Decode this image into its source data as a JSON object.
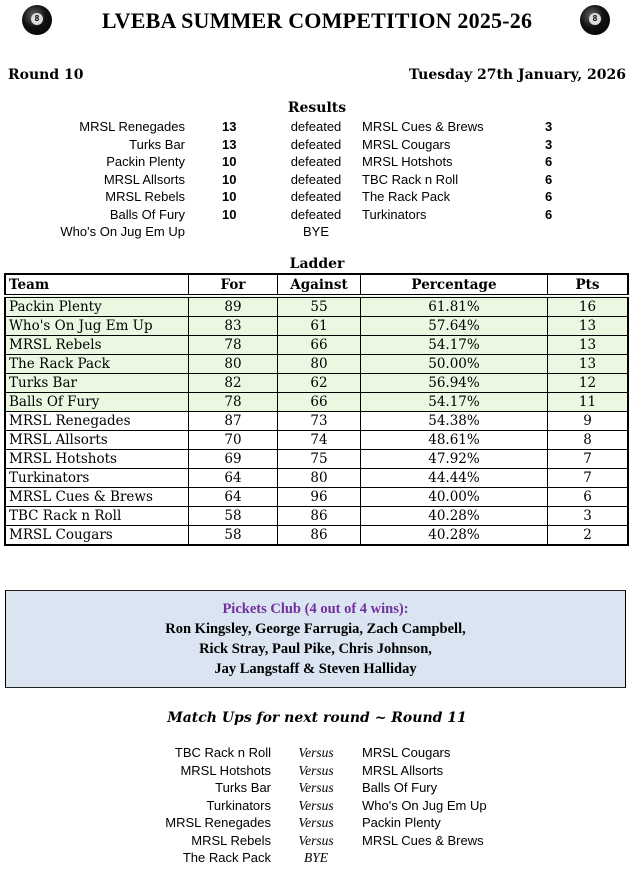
{
  "header": {
    "title": "LVEBA SUMMER COMPETITION 2025-26",
    "round": "Round 10",
    "date": "Tuesday 27th January, 2026",
    "ball_icon": "8"
  },
  "results": {
    "title": "Results",
    "rows": [
      {
        "winner": "MRSL Renegades",
        "ws": "13",
        "verb": "defeated",
        "loser": "MRSL Cues & Brews",
        "ls": "3"
      },
      {
        "winner": "Turks Bar",
        "ws": "13",
        "verb": "defeated",
        "loser": "MRSL Cougars",
        "ls": "3"
      },
      {
        "winner": "Packin Plenty",
        "ws": "10",
        "verb": "defeated",
        "loser": "MRSL Hotshots",
        "ls": "6"
      },
      {
        "winner": "MRSL Allsorts",
        "ws": "10",
        "verb": "defeated",
        "loser": "TBC Rack n Roll",
        "ls": "6"
      },
      {
        "winner": "MRSL Rebels",
        "ws": "10",
        "verb": "defeated",
        "loser": "The Rack Pack",
        "ls": "6"
      },
      {
        "winner": "Balls Of Fury",
        "ws": "10",
        "verb": "defeated",
        "loser": "Turkinators",
        "ls": "6"
      },
      {
        "winner": "Who's On Jug Em Up",
        "ws": "",
        "verb": "BYE",
        "loser": "",
        "ls": ""
      }
    ]
  },
  "ladder": {
    "title": "Ladder",
    "headers": [
      "Team",
      "For",
      "Against",
      "Percentage",
      "Pts"
    ],
    "highlight_color": "#ebf8e1",
    "rows": [
      [
        "Packin Plenty",
        "89",
        "55",
        "61.81%",
        "16"
      ],
      [
        "Who's On Jug Em Up",
        "83",
        "61",
        "57.64%",
        "13"
      ],
      [
        "MRSL Rebels",
        "78",
        "66",
        "54.17%",
        "13"
      ],
      [
        "The Rack Pack",
        "80",
        "80",
        "50.00%",
        "13"
      ],
      [
        "Turks Bar",
        "82",
        "62",
        "56.94%",
        "12"
      ],
      [
        "Balls Of Fury",
        "78",
        "66",
        "54.17%",
        "11"
      ],
      [
        "MRSL Renegades",
        "87",
        "73",
        "54.38%",
        "9"
      ],
      [
        "MRSL Allsorts",
        "70",
        "74",
        "48.61%",
        "8"
      ],
      [
        "MRSL Hotshots",
        "69",
        "75",
        "47.92%",
        "7"
      ],
      [
        "Turkinators",
        "64",
        "80",
        "44.44%",
        "7"
      ],
      [
        "MRSL Cues & Brews",
        "64",
        "96",
        "40.00%",
        "6"
      ],
      [
        "TBC Rack n Roll",
        "58",
        "86",
        "40.28%",
        "3"
      ],
      [
        "MRSL Cougars",
        "58",
        "86",
        "40.28%",
        "2"
      ]
    ]
  },
  "pickets": {
    "title": "Pickets Club (4 out of 4 wins):",
    "lines": [
      "Ron Kingsley, George Farrugia, Zach Campbell,",
      "Rick Stray, Paul Pike, Chris Johnson,",
      "Jay Langstaff & Steven Halliday"
    ],
    "title_color": "#7030a0",
    "bg": "#dbe5f1"
  },
  "matchups": {
    "title": "Match Ups for next round ~ Round 11",
    "rows": [
      {
        "home": "TBC Rack n Roll",
        "vs": "Versus",
        "away": "MRSL Cougars"
      },
      {
        "home": "MRSL Hotshots",
        "vs": "Versus",
        "away": "MRSL Allsorts"
      },
      {
        "home": "Turks Bar",
        "vs": "Versus",
        "away": "Balls Of Fury"
      },
      {
        "home": "Turkinators",
        "vs": "Versus",
        "away": "Who's On Jug Em Up"
      },
      {
        "home": "MRSL Renegades",
        "vs": "Versus",
        "away": "Packin Plenty"
      },
      {
        "home": "MRSL Rebels",
        "vs": "Versus",
        "away": "MRSL Cues & Brews"
      },
      {
        "home": "The Rack Pack",
        "vs": "BYE",
        "away": ""
      }
    ]
  }
}
